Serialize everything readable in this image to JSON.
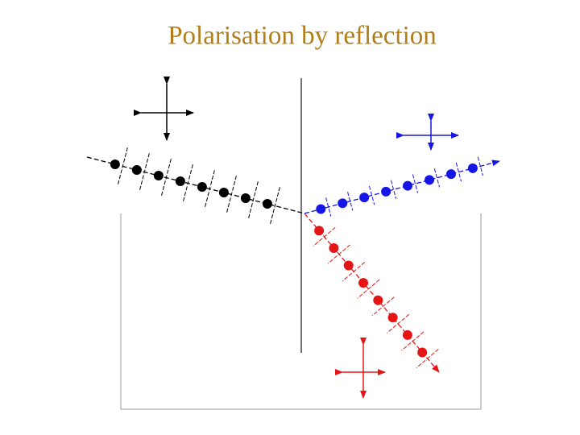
{
  "title": "Polarisation by reflection"
}
